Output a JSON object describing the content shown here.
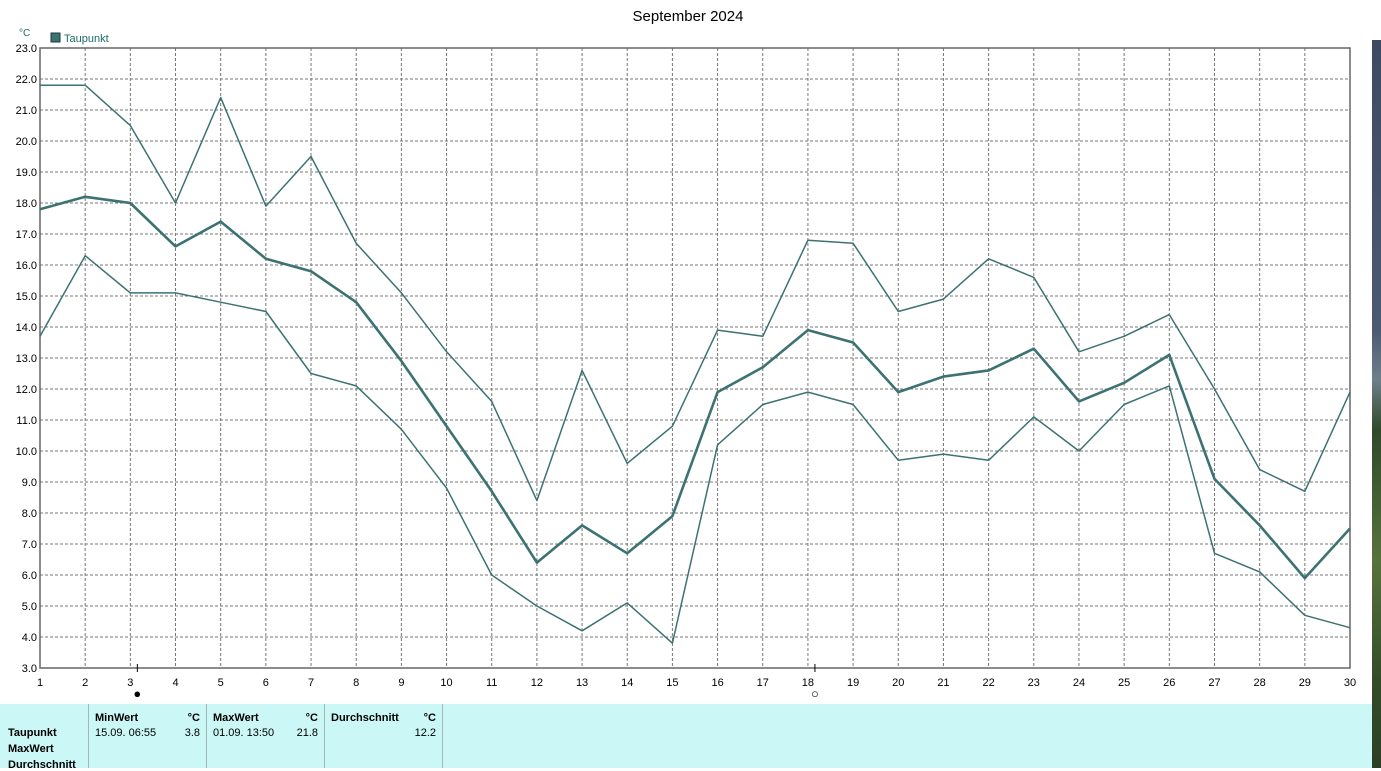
{
  "chart_data": {
    "type": "line",
    "title": "September 2024",
    "unit": "°C",
    "legend": {
      "label": "Taupunkt",
      "color": "#3d7272",
      "position": "top-left"
    },
    "ylim": [
      3.0,
      23.0
    ],
    "yticks": [
      "3.0",
      "4.0",
      "5.0",
      "6.0",
      "7.0",
      "8.0",
      "9.0",
      "10.0",
      "11.0",
      "12.0",
      "13.0",
      "14.0",
      "15.0",
      "16.0",
      "17.0",
      "18.0",
      "19.0",
      "20.0",
      "21.0",
      "22.0",
      "23.0"
    ],
    "x": [
      1,
      2,
      3,
      4,
      5,
      6,
      7,
      8,
      9,
      10,
      11,
      12,
      13,
      14,
      15,
      16,
      17,
      18,
      19,
      20,
      21,
      22,
      23,
      24,
      25,
      26,
      27,
      28,
      29,
      30
    ],
    "grid": true,
    "series": [
      {
        "values": [
          21.8,
          21.8,
          20.5,
          18.0,
          21.4,
          17.9,
          19.5,
          16.7,
          15.1,
          13.2,
          11.6,
          8.4,
          12.6,
          9.6,
          10.8,
          13.9,
          13.7,
          16.8,
          16.7,
          14.5,
          14.9,
          16.2,
          15.6,
          13.2,
          13.7,
          14.4,
          12.0,
          9.4,
          8.7,
          11.9
        ],
        "stroke": 1.5
      },
      {
        "values": [
          17.8,
          18.2,
          18.0,
          16.6,
          17.4,
          16.2,
          15.8,
          14.8,
          12.9,
          10.8,
          8.7,
          6.4,
          7.6,
          6.7,
          7.9,
          11.9,
          12.7,
          13.9,
          13.5,
          11.9,
          12.4,
          12.6,
          13.3,
          11.6,
          12.2,
          13.1,
          9.1,
          7.6,
          5.9,
          7.5
        ],
        "stroke": 2.6
      },
      {
        "values": [
          13.7,
          16.3,
          15.1,
          15.1,
          14.8,
          14.5,
          12.5,
          12.1,
          10.7,
          8.8,
          6.0,
          5.0,
          4.2,
          5.1,
          3.8,
          10.2,
          11.5,
          11.9,
          11.5,
          9.7,
          9.9,
          9.7,
          11.1,
          10.0,
          11.5,
          12.1,
          6.7,
          6.1,
          4.7,
          4.3
        ],
        "stroke": 1.5
      }
    ],
    "markers": [
      {
        "day": 3,
        "symbol": "●"
      },
      {
        "day": 18,
        "symbol": "○"
      }
    ]
  },
  "stats": {
    "rows": [
      "Taupunkt",
      "MaxWert",
      "Durchschnitt"
    ],
    "columns": [
      {
        "header": "MinWert",
        "unit": "°C",
        "time": "15.09.  06:55",
        "value": "3.8"
      },
      {
        "header": "MaxWert",
        "unit": "°C",
        "time": "01.09.  13:50",
        "value": "21.8"
      },
      {
        "header": "Durchschnitt",
        "unit": "°C",
        "time": "",
        "value": "12.2"
      }
    ]
  }
}
